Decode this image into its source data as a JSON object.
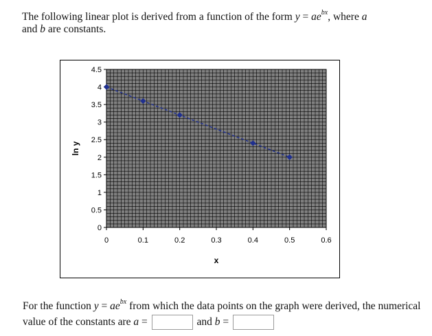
{
  "intro": {
    "text_1": "The following linear plot is derived from a function of the form ",
    "formula_y": "y",
    "formula_eq": " = ",
    "formula_a": "a",
    "formula_e": "e",
    "formula_exp": "bx",
    "text_2": ", where ",
    "var_a": "a",
    "text_3": " and ",
    "var_b": "b",
    "text_4": " are constants."
  },
  "question": {
    "text_1": "For the function ",
    "formula_y": "y",
    "formula_eq": " = ",
    "formula_a": "a",
    "formula_e": "e",
    "formula_exp": "bx",
    "text_2": " from which the data points on the graph were derived, the numerical value of the constants are ",
    "var_a": "a",
    "eq_1": " = ",
    "text_3": " and ",
    "var_b": "b",
    "eq_2": " = ",
    "answer_a_value": "",
    "answer_b_value": ""
  },
  "chart_data": {
    "type": "line",
    "title": "",
    "xlabel": "x",
    "ylabel": "ln y",
    "xlim": [
      0,
      0.6
    ],
    "ylim": [
      0,
      4.5
    ],
    "x_ticks": [
      "0",
      "0.1",
      "0.2",
      "0.3",
      "0.4",
      "0.5",
      "0.6"
    ],
    "y_ticks": [
      "0",
      "0.5",
      "1",
      "1.5",
      "2",
      "2.5",
      "3",
      "3.5",
      "4",
      "4.5"
    ],
    "grid": true,
    "legend": "none",
    "series": [
      {
        "x": [
          0,
          0.1,
          0.2,
          0.4,
          0.5
        ],
        "y": [
          4.0,
          3.6,
          3.2,
          2.4,
          2.0
        ],
        "color": "#1f2f8f",
        "line_style": "dashed",
        "marker": "diamond"
      }
    ],
    "plot_bg": "#808080",
    "grid_color": "#000000"
  }
}
